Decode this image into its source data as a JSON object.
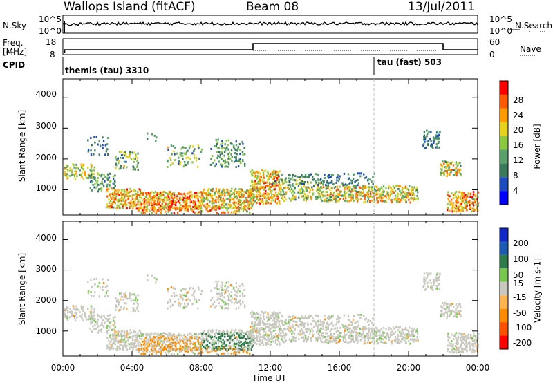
{
  "header": {
    "station": "Wallops Island (fitACF)",
    "beam": "Beam 08",
    "date": "13/Jul/2011"
  },
  "top_panels": {
    "nsky_label": "N.Sky",
    "nsky_ticks": [
      "10^5",
      "10^0"
    ],
    "nsearch_label": "N.Search",
    "nsearch_ticks": [
      "10^5",
      "10^0"
    ],
    "freq_label_1": "Freq.",
    "freq_label_2": "[MHz]",
    "freq_ticks": [
      "18",
      "8"
    ],
    "nave_label": "Nave",
    "nave_ticks": [
      "60",
      "0"
    ],
    "cpid_label": "CPID",
    "cpid_1": "themis (tau) 3310",
    "cpid_2": "tau (fast) 503"
  },
  "colors": {
    "power_scale": [
      "#0000ff",
      "#1b4bbd",
      "#3a7a5a",
      "#5aa06a",
      "#8cc840",
      "#e6d21e",
      "#ff9a00",
      "#ff5a00",
      "#ff0000"
    ],
    "velocity_scale": [
      "#1428c8",
      "#1e5ab4",
      "#2e7a4a",
      "#78c850",
      "#c8c8be",
      "#ffb450",
      "#ff8c00",
      "#ff5000",
      "#ff0000"
    ]
  },
  "chart_data": [
    {
      "type": "heatmap",
      "name_panel": "power",
      "ylabel": "Slant Range [km]",
      "xlabel": "Time UT",
      "x_ticks": [
        "00:00",
        "04:00",
        "08:00",
        "12:00",
        "16:00",
        "20:00",
        "00:00"
      ],
      "x_range_hours": [
        0,
        24
      ],
      "y_ticks": [
        1000,
        2000,
        3000,
        4000
      ],
      "ylim": [
        180,
        4600
      ],
      "colorbar_label": "Power [dB]",
      "colorbar_ticks": [
        4,
        8,
        12,
        16,
        20,
        24,
        28
      ],
      "colorbar_range": [
        0,
        32
      ]
    },
    {
      "type": "heatmap",
      "name_panel": "velocity",
      "ylabel": "Slant Range [km]",
      "xlabel": "Time UT",
      "x_ticks": [
        "00:00",
        "04:00",
        "08:00",
        "12:00",
        "16:00",
        "20:00",
        "00:00"
      ],
      "x_range_hours": [
        0,
        24
      ],
      "y_ticks": [
        1000,
        2000,
        3000,
        4000
      ],
      "ylim": [
        180,
        4600
      ],
      "colorbar_label": "Velocity [m s-1]",
      "colorbar_ticks": [
        "200",
        "100",
        "50",
        "15",
        "-15",
        "-50",
        "-100",
        "-200"
      ]
    }
  ]
}
